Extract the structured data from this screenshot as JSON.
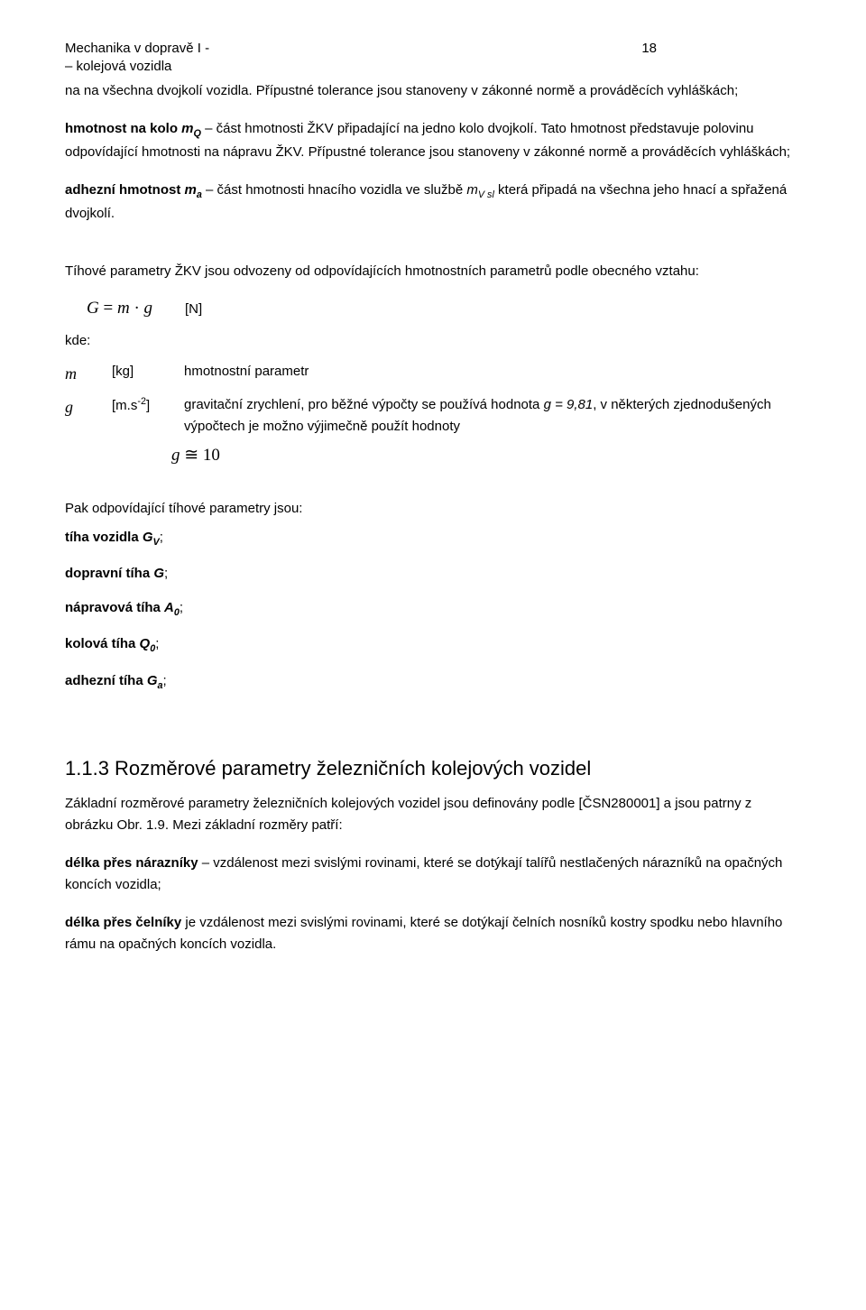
{
  "header": {
    "title_line1": "Mechanika v dopravě I -",
    "title_line2": "– kolejová vozidla",
    "page_number": "18"
  },
  "p1_a": "na na všechna dvojkolí vozidla. Přípustné tolerance jsou stanoveny v zákonné normě a prováděcích vyhláškách;",
  "p2_lead": "hmotnost na kolo ",
  "p2_sym": "m",
  "p2_sub": "Q",
  "p2_rest": " – část hmotnosti ŽKV připadající na jedno kolo dvojkolí. Tato hmotnost představuje polovinu odpovídající hmotnosti na nápravu ŽKV. Přípustné tolerance jsou stanoveny v zákonné normě a prováděcích vyhláškách;",
  "p3_lead": "adhezní hmotnost ",
  "p3_sym": "m",
  "p3_sub": "a",
  "p3_mid": " – část hmotnosti hnacího vozidla ve službě ",
  "p3_sym2": "m",
  "p3_sub2": "V sl",
  "p3_rest": "  která připadá na všechna jeho hnací a spřažená dvojkolí.",
  "p4": "Tíhové parametry ŽKV jsou odvozeny od odpovídajících hmotnostních parametrů podle obecného vztahu:",
  "eq1": {
    "lhs": "G",
    "eq": " = ",
    "m": "m",
    "dot": " · ",
    "g": "g",
    "unit": "[N]"
  },
  "kde": "kde:",
  "defs": {
    "m": {
      "sym": "m",
      "unit": "[kg]",
      "desc": "hmotnostní parametr"
    },
    "g": {
      "sym": "g",
      "unit": "[m.s",
      "unit_sup": "-2",
      "unit_close": "]",
      "desc_a": "gravitační zrychlení, pro běžné výpočty se používá hodnota ",
      "desc_gval": "g = 9,81",
      "desc_b": ", v některých zjednodušených výpočtech je možno výjimečně použít hodnoty"
    }
  },
  "g10": {
    "g": "g",
    "approx": " ≅ 10"
  },
  "p5": "Pak odpovídající tíhové parametry jsou:",
  "list": {
    "l1_a": "tíha vozidla ",
    "l1_sym": "G",
    "l1_sub": "V",
    "l1_end": ";",
    "l2_a": "dopravní tíha ",
    "l2_sym": "G",
    "l2_end": ";",
    "l3_a": "nápravová tíha ",
    "l3_sym": "A",
    "l3_sub": "0",
    "l3_end": ";",
    "l4_a": "kolová tíha ",
    "l4_sym": "Q",
    "l4_sub": "0",
    "l4_end": ";",
    "l5_a": "adhezní tíha ",
    "l5_sym": "G",
    "l5_sub": "a",
    "l5_end": ";"
  },
  "h3": "1.1.3  Rozměrové parametry železničních kolejových vozidel",
  "p6": "Základní rozměrové parametry železničních kolejových vozidel jsou definovány podle [ČSN280001] a jsou patrny z obrázku Obr. 1.9. Mezi základní rozměry patří:",
  "p7_lead": "délka přes nárazníky",
  "p7_rest": " – vzdálenost mezi svislými rovinami, které se dotýkají talířů nestlačených nárazníků na opačných koncích vozidla;",
  "p8_lead": "délka přes čelníky",
  "p8_rest": " je vzdálenost mezi svislými rovinami, které se dotýkají čelních nosníků kostry spodku nebo hlavního rámu na opačných koncích vozidla."
}
